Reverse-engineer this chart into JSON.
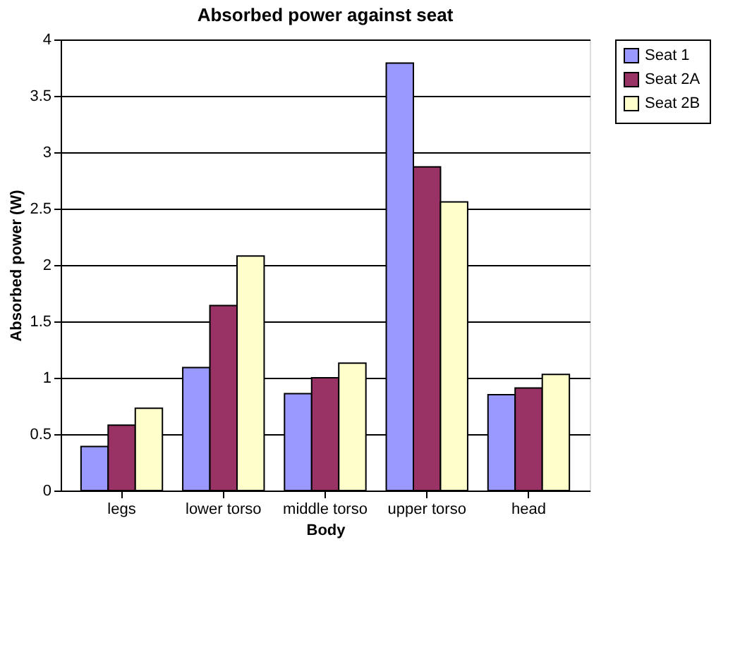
{
  "chart_data": {
    "type": "bar",
    "title": "Absorbed power against seat",
    "xlabel": "Body",
    "ylabel": "Absorbed power (W)",
    "categories": [
      "legs",
      "lower torso",
      "middle torso",
      "upper torso",
      "head"
    ],
    "series": [
      {
        "name": "Seat 1",
        "color": "#9999ff",
        "values": [
          0.39,
          1.09,
          0.86,
          3.79,
          0.85
        ]
      },
      {
        "name": "Seat 2A",
        "color": "#993366",
        "values": [
          0.58,
          1.64,
          1.0,
          2.87,
          0.91
        ]
      },
      {
        "name": "Seat 2B",
        "color": "#ffffcc",
        "values": [
          0.73,
          2.08,
          1.13,
          2.56,
          1.03
        ]
      }
    ],
    "ylim": [
      0,
      4
    ],
    "yticks": [
      0,
      0.5,
      1,
      1.5,
      2,
      2.5,
      3,
      3.5,
      4
    ],
    "grid": "y",
    "legend": "right"
  }
}
